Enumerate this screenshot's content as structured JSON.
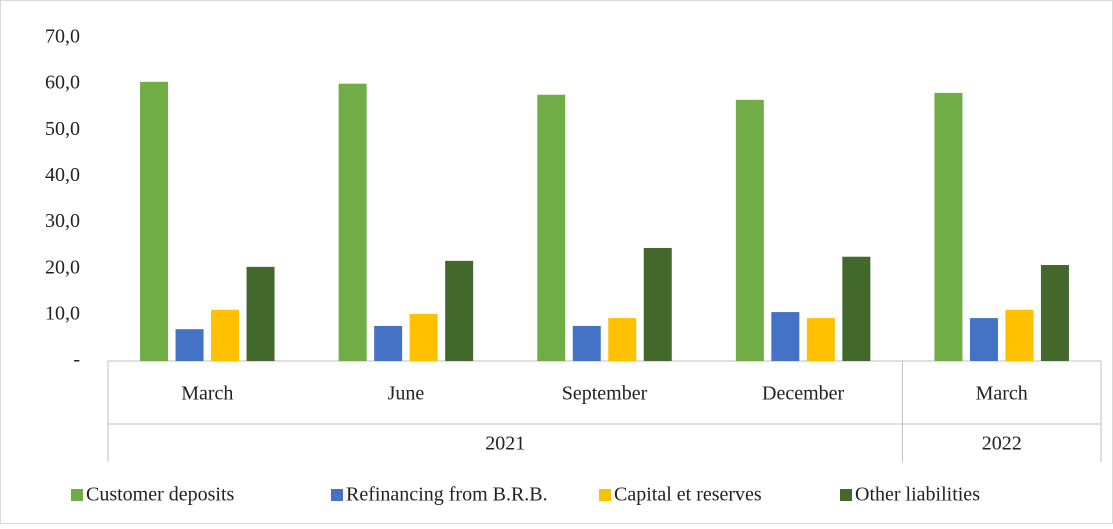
{
  "chart_data": {
    "type": "bar",
    "groups": [
      {
        "name": "2021",
        "categories": [
          "March",
          "June",
          "September",
          "December"
        ]
      },
      {
        "name": "2022",
        "categories": [
          "March"
        ]
      }
    ],
    "series": [
      {
        "name": "Customer deposits",
        "color": "#70ad47",
        "values": [
          60.5,
          60.1,
          57.7,
          56.6,
          58.1
        ]
      },
      {
        "name": "Refinancing from B.R.B.",
        "color": "#4472c4",
        "values": [
          6.9,
          7.6,
          7.6,
          10.6,
          9.3
        ]
      },
      {
        "name": "Capital et reserves",
        "color": "#ffc000",
        "values": [
          11.1,
          10.2,
          9.3,
          9.3,
          11.1
        ]
      },
      {
        "name": "Other liabilities",
        "color": "#43682b",
        "values": [
          20.4,
          21.7,
          24.5,
          22.6,
          20.8
        ]
      }
    ],
    "ylim": [
      0,
      70
    ],
    "yticks": [
      {
        "value": 0,
        "label": "-"
      },
      {
        "value": 10,
        "label": "10,0"
      },
      {
        "value": 20,
        "label": "20,0"
      },
      {
        "value": 30,
        "label": "30,0"
      },
      {
        "value": 40,
        "label": "40,0"
      },
      {
        "value": 50,
        "label": "50,0"
      },
      {
        "value": 60,
        "label": "60,0"
      },
      {
        "value": 70,
        "label": "70,0"
      }
    ],
    "grid": false,
    "legend": "bottom"
  }
}
